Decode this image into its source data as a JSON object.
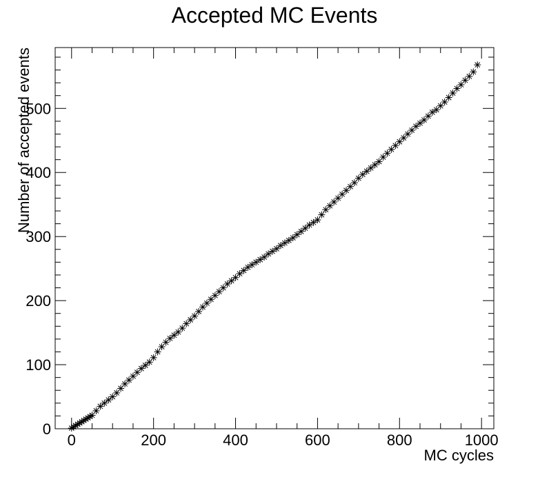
{
  "chart_data": {
    "type": "scatter",
    "title": "Accepted MC Events",
    "xlabel": "MC cycles",
    "ylabel": "Number of accepted events",
    "xlim": [
      -40,
      1030
    ],
    "ylim": [
      0,
      595
    ],
    "x_ticks": [
      0,
      200,
      400,
      600,
      800,
      1000
    ],
    "y_ticks": [
      0,
      100,
      200,
      300,
      400,
      500
    ],
    "x_tick_labels": [
      "0",
      "200",
      "400",
      "600",
      "800",
      "1000"
    ],
    "y_tick_labels": [
      "0",
      "100",
      "200",
      "300",
      "400",
      "500"
    ],
    "marker": "asterisk",
    "marker_color": "#000000",
    "grid": false,
    "legend": "none",
    "series": [
      {
        "x": [
          0,
          5,
          10,
          15,
          20,
          25,
          30,
          35,
          40,
          45,
          50,
          60,
          70,
          80,
          90,
          100,
          110,
          120,
          130,
          140,
          150,
          160,
          170,
          180,
          190,
          200,
          210,
          220,
          230,
          240,
          250,
          260,
          270,
          280,
          290,
          300,
          310,
          320,
          330,
          340,
          350,
          360,
          370,
          380,
          390,
          400,
          410,
          420,
          430,
          440,
          450,
          460,
          470,
          480,
          490,
          500,
          510,
          520,
          530,
          540,
          550,
          560,
          570,
          580,
          590,
          600,
          610,
          620,
          630,
          640,
          650,
          660,
          670,
          680,
          690,
          700,
          710,
          720,
          730,
          740,
          750,
          760,
          770,
          780,
          790,
          800,
          810,
          820,
          830,
          840,
          850,
          860,
          870,
          880,
          890,
          900,
          910,
          920,
          930,
          940,
          950,
          960,
          970,
          980,
          990
        ],
        "y": [
          1,
          3,
          5,
          7,
          9,
          11,
          13,
          15,
          17,
          19,
          21,
          28,
          35,
          40,
          45,
          50,
          56,
          63,
          70,
          76,
          82,
          88,
          94,
          99,
          104,
          111,
          120,
          128,
          135,
          141,
          146,
          151,
          157,
          164,
          170,
          176,
          183,
          190,
          196,
          202,
          208,
          214,
          220,
          226,
          231,
          236,
          242,
          247,
          252,
          256,
          260,
          264,
          268,
          273,
          277,
          281,
          286,
          290,
          294,
          298,
          303,
          308,
          313,
          318,
          322,
          326,
          334,
          342,
          348,
          354,
          360,
          366,
          372,
          378,
          384,
          391,
          397,
          402,
          407,
          412,
          417,
          424,
          430,
          436,
          442,
          448,
          454,
          460,
          466,
          472,
          477,
          482,
          488,
          494,
          498,
          504,
          510,
          517,
          524,
          531,
          537,
          544,
          550,
          557,
          568
        ]
      }
    ]
  }
}
